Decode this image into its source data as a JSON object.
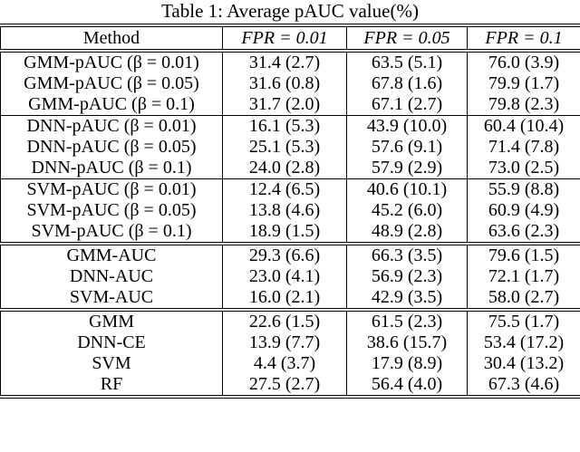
{
  "title": "Table 1: Average pAUC value(%)",
  "table": {
    "header": [
      "Method",
      "FPR = 0.01",
      "FPR = 0.05",
      "FPR = 0.1"
    ],
    "groups": [
      {
        "rows": [
          [
            "GMM-pAUC (β = 0.01)",
            "31.4 (2.7)",
            "63.5 (5.1)",
            "76.0 (3.9)"
          ],
          [
            "GMM-pAUC (β = 0.05)",
            "31.6 (0.8)",
            "67.8 (1.6)",
            "79.9 (1.7)"
          ],
          [
            "GMM-pAUC (β = 0.1)",
            "31.7 (2.0)",
            "67.1 (2.7)",
            "79.8 (2.3)"
          ]
        ]
      },
      {
        "rows": [
          [
            "DNN-pAUC (β = 0.01)",
            "16.1 (5.3)",
            "43.9 (10.0)",
            "60.4 (10.4)"
          ],
          [
            "DNN-pAUC (β = 0.05)",
            "25.1 (5.3)",
            "57.6 (9.1)",
            "71.4 (7.8)"
          ],
          [
            "DNN-pAUC (β = 0.1)",
            "24.0 (2.8)",
            "57.9 (2.9)",
            "73.0 (2.5)"
          ]
        ]
      },
      {
        "rows": [
          [
            "SVM-pAUC (β = 0.01)",
            "12.4 (6.5)",
            "40.6 (10.1)",
            "55.9 (8.8)"
          ],
          [
            "SVM-pAUC (β = 0.05)",
            "13.8 (4.6)",
            "45.2 (6.0)",
            "60.9 (4.9)"
          ],
          [
            "SVM-pAUC (β = 0.1)",
            "18.9 (1.5)",
            "48.9 (2.8)",
            "63.6 (2.3)"
          ]
        ]
      },
      {
        "rows": [
          [
            "GMM-AUC",
            "29.3 (6.6)",
            "66.3 (3.5)",
            "79.6 (1.5)"
          ],
          [
            "DNN-AUC",
            "23.0 (4.1)",
            "56.9 (2.3)",
            "72.1 (1.7)"
          ],
          [
            "SVM-AUC",
            "16.0 (2.1)",
            "42.9 (3.5)",
            "58.0 (2.7)"
          ]
        ]
      },
      {
        "rows": [
          [
            "GMM",
            "22.6 (1.5)",
            "61.5 (2.3)",
            "75.5 (1.7)"
          ],
          [
            "DNN-CE",
            "13.9 (7.7)",
            "38.6 (15.7)",
            "53.4 (17.2)"
          ],
          [
            "SVM",
            "4.4 (3.7)",
            "17.9 (8.9)",
            "30.4 (13.2)"
          ],
          [
            "RF",
            "27.5 (2.7)",
            "56.4 (4.0)",
            "67.3 (4.6)"
          ]
        ]
      }
    ]
  }
}
